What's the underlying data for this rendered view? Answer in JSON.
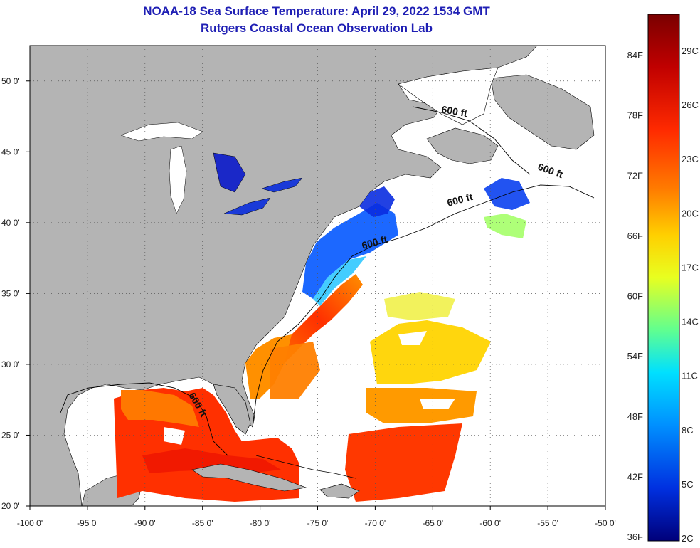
{
  "header": {
    "title_line_1": "NOAA-18 Sea Surface Temperature:  April 29, 2022 1534 GMT",
    "title_line_2": "Rutgers Coastal Ocean Observation Lab"
  },
  "map": {
    "lon_range": [
      -100,
      -50
    ],
    "lat_range": [
      20,
      52.5
    ],
    "lon_ticks": [
      "-100 0'",
      "-95 0'",
      "-90 0'",
      "-85 0'",
      "-80 0'",
      "-75 0'",
      "-70 0'",
      "-65 0'",
      "-60 0'",
      "-55 0'",
      "-50 0'"
    ],
    "lat_ticks": [
      "50 0'",
      "45 0'",
      "40 0'",
      "35 0'",
      "30 0'",
      "25 0'",
      "20 0'"
    ],
    "grid": "dotted",
    "contour_labels": [
      "600 ft",
      "600 ft",
      "600 ft",
      "600 ft",
      "600 ft"
    ]
  },
  "colorbar": {
    "fahrenheit_labels": [
      "84F",
      "78F",
      "72F",
      "66F",
      "60F",
      "54F",
      "48F",
      "42F",
      "36F"
    ],
    "celsius_labels": [
      "29C",
      "26C",
      "23C",
      "20C",
      "17C",
      "14C",
      "11C",
      "8C",
      "5C",
      "2C"
    ],
    "colors": [
      "#7a0000",
      "#c00000",
      "#ff2a00",
      "#ff7a00",
      "#ffd000",
      "#e8ff20",
      "#60ff90",
      "#00e0ff",
      "#0090ff",
      "#0030e0",
      "#00007a"
    ]
  },
  "colors": {
    "land": "#b4b4b4",
    "ocean_nodata": "#ffffff",
    "title": "#1f1fb4"
  }
}
